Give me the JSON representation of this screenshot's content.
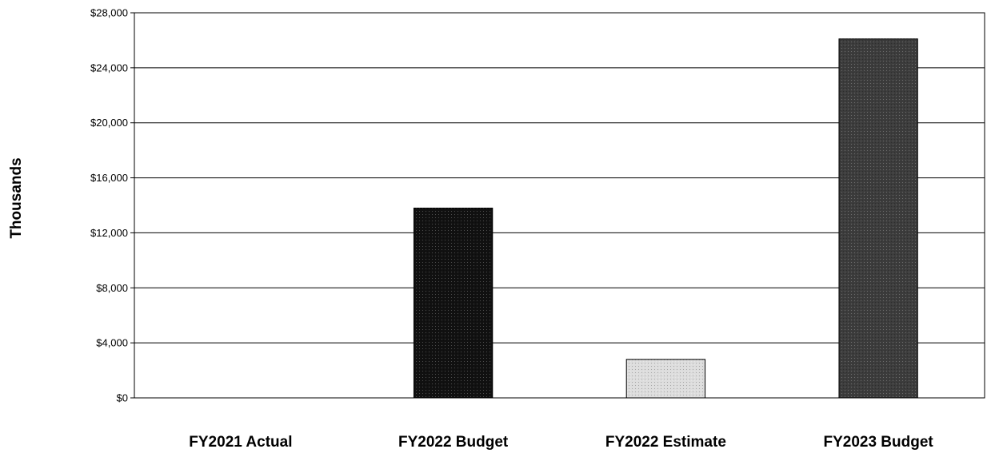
{
  "chart_data": {
    "type": "bar",
    "title": "",
    "xlabel": "",
    "ylabel": "Thousands",
    "ylim": [
      0,
      28000
    ],
    "yticks": [
      0,
      4000,
      8000,
      12000,
      16000,
      20000,
      24000,
      28000
    ],
    "ytick_labels": [
      "$0",
      "$4,000",
      "$8,000",
      "$12,000",
      "$16,000",
      "$20,000",
      "$24,000",
      "$28,000"
    ],
    "categories": [
      "FY2021 Actual",
      "FY2022 Budget",
      "FY2022 Estimate",
      "FY2023 Budget"
    ],
    "values": [
      0,
      13800,
      2800,
      26100
    ],
    "bar_colors": [
      "#999999",
      "#111111",
      "#dddddd",
      "#3c3c3c"
    ],
    "grid": true,
    "legend": "none"
  }
}
